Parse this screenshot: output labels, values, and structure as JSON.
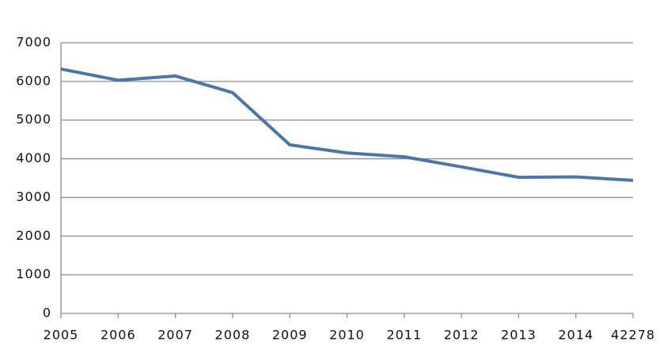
{
  "chart_data": {
    "type": "line",
    "categories": [
      "2005",
      "2006",
      "2007",
      "2008",
      "2009",
      "2010",
      "2011",
      "2012",
      "2013",
      "2014",
      "42278"
    ],
    "series": [
      {
        "color": "#4a76ad",
        "values": [
          6320,
          6030,
          6140,
          5710,
          4360,
          4150,
          4050,
          3790,
          3520,
          3530,
          3440
        ]
      }
    ],
    "ylim": [
      0,
      7000
    ],
    "yticks": [
      0,
      1000,
      2000,
      3000,
      4000,
      5000,
      6000,
      7000
    ],
    "grid": true
  }
}
